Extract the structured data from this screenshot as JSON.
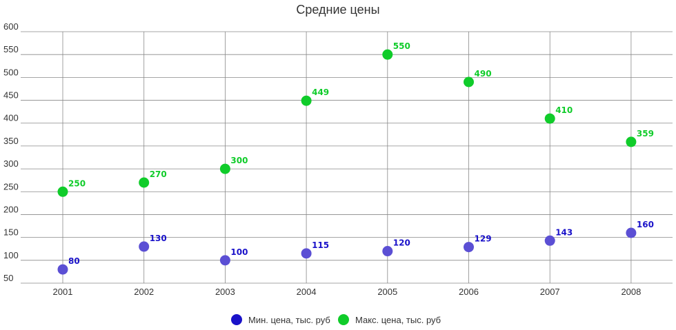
{
  "chart_data": {
    "type": "scatter",
    "title": "Средние цены",
    "x": [
      "2001",
      "2002",
      "2003",
      "2004",
      "2005",
      "2006",
      "2007",
      "2008"
    ],
    "y_ticks": [
      "50",
      "100",
      "150",
      "200",
      "250",
      "300",
      "350",
      "400",
      "450",
      "500",
      "550",
      "600"
    ],
    "ylim": [
      50,
      600
    ],
    "grid": true,
    "legend_position": "bottom",
    "series": [
      {
        "name": "Мин. цена, тыс. руб",
        "color": "#5b4fd4",
        "legend_color": "#1a12c9",
        "label_color": "#1a12c9",
        "values": [
          80,
          130,
          100,
          115,
          120,
          129,
          143,
          160
        ],
        "labels": [
          "80",
          "130",
          "100",
          "115",
          "120",
          "129",
          "143",
          "160"
        ]
      },
      {
        "name": "Макс. цена, тыс. руб",
        "color": "#10cc2a",
        "legend_color": "#10cc2a",
        "label_color": "#10cc2a",
        "values": [
          250,
          270,
          300,
          449,
          550,
          490,
          410,
          359
        ],
        "labels": [
          "250",
          "270",
          "300",
          "449",
          "550",
          "490",
          "410",
          "359"
        ]
      }
    ]
  }
}
